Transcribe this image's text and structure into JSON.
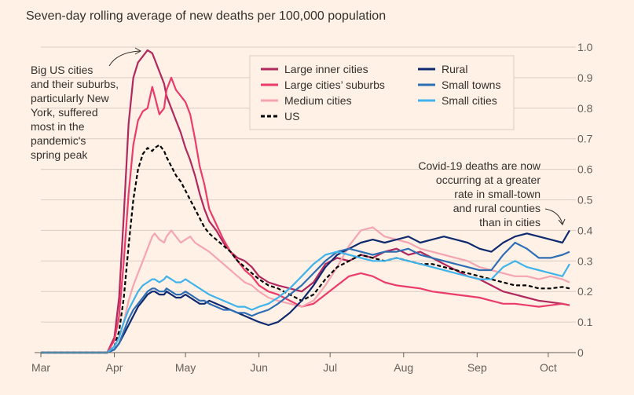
{
  "chart_data": {
    "type": "line",
    "title": "Seven-day rolling average of new deaths per 100,000 population",
    "xlabel": "",
    "ylabel": "",
    "ylim": [
      0,
      1.0
    ],
    "yticks": [
      "0",
      "0.1",
      "0.2",
      "0.3",
      "0.4",
      "0.5",
      "0.6",
      "0.7",
      "0.8",
      "0.9",
      "1.0"
    ],
    "xticks": [
      "Mar",
      "Apr",
      "May",
      "Jun",
      "Jul",
      "Aug",
      "Sep",
      "Oct"
    ],
    "grid": true,
    "legend_position": "top-center",
    "annotations": {
      "left": [
        "Big US cities",
        "and their suburbs,",
        "particularly New",
        "York, suffered",
        "most in the",
        "pandemic's",
        "spring peak"
      ],
      "right": [
        "Covid-19 deaths are now",
        "occurring at a greater",
        "rate in small-town",
        "and rural counties",
        "than in cities"
      ]
    },
    "series": [
      {
        "name": "Large inner cities",
        "color": "#b0285e",
        "dashed": false,
        "x": [
          0,
          28,
          31,
          33,
          35,
          37,
          39,
          41,
          43,
          45,
          47,
          48,
          50,
          52,
          53,
          55,
          57,
          59,
          61,
          63,
          65,
          67,
          69,
          71,
          74,
          77,
          80,
          83,
          86,
          89,
          92,
          96,
          100,
          105,
          110,
          115,
          120,
          125,
          130,
          135,
          140,
          145,
          150,
          155,
          160,
          165,
          170,
          175,
          180,
          185,
          190,
          195,
          200,
          205,
          210,
          215,
          220,
          223
        ],
        "y": [
          0,
          0,
          0.05,
          0.18,
          0.45,
          0.75,
          0.9,
          0.95,
          0.97,
          0.99,
          0.98,
          0.96,
          0.92,
          0.88,
          0.84,
          0.8,
          0.76,
          0.72,
          0.67,
          0.63,
          0.58,
          0.52,
          0.47,
          0.43,
          0.4,
          0.36,
          0.33,
          0.31,
          0.3,
          0.28,
          0.25,
          0.23,
          0.22,
          0.21,
          0.2,
          0.23,
          0.29,
          0.31,
          0.3,
          0.32,
          0.31,
          0.33,
          0.34,
          0.32,
          0.33,
          0.31,
          0.29,
          0.27,
          0.25,
          0.24,
          0.22,
          0.2,
          0.19,
          0.18,
          0.17,
          0.165,
          0.16,
          0.155
        ]
      },
      {
        "name": "Large cities’ suburbs",
        "color": "#eb3b6a",
        "dashed": false,
        "x": [
          0,
          28,
          31,
          33,
          35,
          37,
          39,
          41,
          43,
          45,
          47,
          48,
          50,
          52,
          53,
          55,
          57,
          59,
          61,
          63,
          65,
          67,
          69,
          71,
          74,
          77,
          80,
          83,
          86,
          89,
          92,
          96,
          100,
          105,
          110,
          115,
          120,
          125,
          130,
          135,
          140,
          145,
          150,
          155,
          160,
          165,
          170,
          175,
          180,
          185,
          190,
          195,
          200,
          205,
          210,
          215,
          220,
          223
        ],
        "y": [
          0,
          0,
          0.04,
          0.12,
          0.3,
          0.52,
          0.68,
          0.76,
          0.79,
          0.8,
          0.87,
          0.84,
          0.78,
          0.8,
          0.86,
          0.9,
          0.86,
          0.84,
          0.82,
          0.78,
          0.7,
          0.61,
          0.55,
          0.47,
          0.42,
          0.37,
          0.33,
          0.3,
          0.27,
          0.25,
          0.22,
          0.2,
          0.19,
          0.17,
          0.15,
          0.16,
          0.19,
          0.22,
          0.25,
          0.26,
          0.25,
          0.23,
          0.22,
          0.215,
          0.21,
          0.2,
          0.195,
          0.19,
          0.185,
          0.18,
          0.17,
          0.16,
          0.16,
          0.155,
          0.15,
          0.155,
          0.16,
          0.155
        ]
      },
      {
        "name": "Medium cities",
        "color": "#f5a5b0",
        "dashed": false,
        "x": [
          0,
          28,
          31,
          33,
          35,
          37,
          39,
          41,
          43,
          45,
          47,
          48,
          50,
          52,
          53,
          55,
          57,
          59,
          61,
          63,
          65,
          67,
          69,
          71,
          74,
          77,
          80,
          83,
          86,
          89,
          92,
          96,
          100,
          105,
          110,
          115,
          120,
          125,
          130,
          135,
          140,
          145,
          150,
          155,
          160,
          165,
          170,
          175,
          180,
          185,
          190,
          195,
          200,
          205,
          210,
          215,
          220,
          223
        ],
        "y": [
          0,
          0,
          0.02,
          0.05,
          0.1,
          0.17,
          0.22,
          0.26,
          0.3,
          0.34,
          0.38,
          0.39,
          0.37,
          0.36,
          0.38,
          0.4,
          0.38,
          0.36,
          0.37,
          0.38,
          0.36,
          0.35,
          0.34,
          0.33,
          0.31,
          0.29,
          0.27,
          0.25,
          0.23,
          0.22,
          0.2,
          0.18,
          0.17,
          0.16,
          0.15,
          0.17,
          0.22,
          0.28,
          0.35,
          0.4,
          0.41,
          0.38,
          0.37,
          0.36,
          0.34,
          0.33,
          0.32,
          0.31,
          0.3,
          0.28,
          0.27,
          0.26,
          0.25,
          0.25,
          0.24,
          0.25,
          0.24,
          0.23
        ]
      },
      {
        "name": "US",
        "color": "#000000",
        "dashed": true,
        "x": [
          0,
          28,
          31,
          33,
          35,
          37,
          39,
          41,
          43,
          45,
          47,
          48,
          50,
          52,
          53,
          55,
          57,
          59,
          61,
          63,
          65,
          67,
          69,
          71,
          74,
          77,
          80,
          83,
          86,
          89,
          92,
          96,
          100,
          105,
          110,
          115,
          120,
          125,
          130,
          135,
          140,
          145,
          150,
          155,
          160,
          165,
          170,
          175,
          180,
          185,
          190,
          195,
          200,
          205,
          210,
          215,
          220,
          223
        ],
        "y": [
          0,
          0,
          0.02,
          0.07,
          0.18,
          0.35,
          0.5,
          0.6,
          0.65,
          0.67,
          0.66,
          0.67,
          0.68,
          0.66,
          0.64,
          0.61,
          0.58,
          0.56,
          0.53,
          0.5,
          0.47,
          0.44,
          0.41,
          0.39,
          0.37,
          0.35,
          0.33,
          0.3,
          0.28,
          0.26,
          0.24,
          0.22,
          0.21,
          0.19,
          0.17,
          0.19,
          0.24,
          0.28,
          0.3,
          0.32,
          0.31,
          0.3,
          0.31,
          0.3,
          0.29,
          0.29,
          0.28,
          0.27,
          0.26,
          0.25,
          0.24,
          0.23,
          0.22,
          0.22,
          0.21,
          0.21,
          0.215,
          0.21
        ]
      },
      {
        "name": "Rural",
        "color": "#0f2a6e",
        "dashed": false,
        "x": [
          0,
          28,
          31,
          33,
          35,
          37,
          39,
          41,
          43,
          45,
          47,
          48,
          50,
          52,
          53,
          55,
          57,
          59,
          61,
          63,
          65,
          67,
          69,
          71,
          74,
          77,
          80,
          83,
          86,
          89,
          92,
          96,
          100,
          105,
          110,
          115,
          120,
          125,
          130,
          135,
          140,
          145,
          150,
          155,
          160,
          165,
          170,
          175,
          180,
          185,
          190,
          195,
          200,
          205,
          210,
          215,
          220,
          223
        ],
        "y": [
          0,
          0,
          0.01,
          0.03,
          0.06,
          0.09,
          0.12,
          0.15,
          0.17,
          0.19,
          0.2,
          0.2,
          0.19,
          0.19,
          0.2,
          0.19,
          0.18,
          0.18,
          0.19,
          0.18,
          0.17,
          0.16,
          0.16,
          0.17,
          0.16,
          0.15,
          0.14,
          0.13,
          0.12,
          0.11,
          0.1,
          0.09,
          0.1,
          0.13,
          0.17,
          0.22,
          0.28,
          0.32,
          0.34,
          0.36,
          0.37,
          0.36,
          0.37,
          0.38,
          0.36,
          0.37,
          0.38,
          0.37,
          0.36,
          0.34,
          0.33,
          0.36,
          0.38,
          0.39,
          0.38,
          0.37,
          0.36,
          0.4
        ]
      },
      {
        "name": "Small towns",
        "color": "#2e6eb4",
        "dashed": false,
        "x": [
          0,
          28,
          31,
          33,
          35,
          37,
          39,
          41,
          43,
          45,
          47,
          48,
          50,
          52,
          53,
          55,
          57,
          59,
          61,
          63,
          65,
          67,
          69,
          71,
          74,
          77,
          80,
          83,
          86,
          89,
          92,
          96,
          100,
          105,
          110,
          115,
          120,
          125,
          130,
          135,
          140,
          145,
          150,
          155,
          160,
          165,
          170,
          175,
          180,
          185,
          190,
          195,
          200,
          205,
          210,
          215,
          220,
          223
        ],
        "y": [
          0,
          0,
          0.01,
          0.03,
          0.07,
          0.11,
          0.14,
          0.16,
          0.18,
          0.2,
          0.21,
          0.21,
          0.2,
          0.2,
          0.21,
          0.2,
          0.19,
          0.19,
          0.2,
          0.19,
          0.18,
          0.17,
          0.17,
          0.16,
          0.15,
          0.14,
          0.14,
          0.13,
          0.13,
          0.12,
          0.13,
          0.14,
          0.16,
          0.19,
          0.22,
          0.26,
          0.3,
          0.33,
          0.34,
          0.33,
          0.32,
          0.33,
          0.33,
          0.34,
          0.32,
          0.31,
          0.3,
          0.29,
          0.28,
          0.27,
          0.27,
          0.32,
          0.36,
          0.34,
          0.31,
          0.31,
          0.32,
          0.33
        ]
      },
      {
        "name": "Small cities",
        "color": "#3fb3ea",
        "dashed": false,
        "x": [
          0,
          28,
          31,
          33,
          35,
          37,
          39,
          41,
          43,
          45,
          47,
          48,
          50,
          52,
          53,
          55,
          57,
          59,
          61,
          63,
          65,
          67,
          69,
          71,
          74,
          77,
          80,
          83,
          86,
          89,
          92,
          96,
          100,
          105,
          110,
          115,
          120,
          125,
          130,
          135,
          140,
          145,
          150,
          155,
          160,
          165,
          170,
          175,
          180,
          185,
          190,
          195,
          200,
          205,
          210,
          215,
          220,
          223
        ],
        "y": [
          0,
          0,
          0.02,
          0.05,
          0.1,
          0.14,
          0.17,
          0.2,
          0.22,
          0.23,
          0.24,
          0.24,
          0.23,
          0.24,
          0.25,
          0.24,
          0.23,
          0.23,
          0.24,
          0.23,
          0.22,
          0.21,
          0.2,
          0.19,
          0.18,
          0.17,
          0.16,
          0.15,
          0.15,
          0.14,
          0.15,
          0.16,
          0.18,
          0.21,
          0.25,
          0.29,
          0.32,
          0.33,
          0.32,
          0.31,
          0.3,
          0.3,
          0.31,
          0.3,
          0.29,
          0.28,
          0.27,
          0.26,
          0.25,
          0.24,
          0.24,
          0.28,
          0.3,
          0.28,
          0.27,
          0.26,
          0.25,
          0.29
        ]
      }
    ]
  }
}
